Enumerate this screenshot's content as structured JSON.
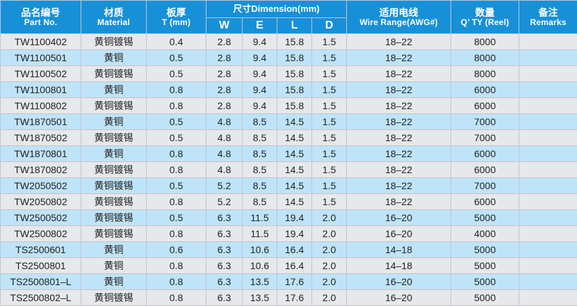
{
  "header": {
    "part_no": {
      "cn": "品名编号",
      "en": "Part No."
    },
    "material": {
      "cn": "材质",
      "en": "Material"
    },
    "thickness": {
      "cn": "板厚",
      "en": "T (mm)"
    },
    "dimension": "尺寸Dimension(mm)",
    "dims": [
      "W",
      "E",
      "L",
      "D"
    ],
    "wire_range": {
      "cn": "适用电线",
      "en": "Wire Range(AWG#)"
    },
    "qty": {
      "cn": "数量",
      "en": "Q’ TY (Reel)"
    },
    "remarks": {
      "cn": "备注",
      "en": "Remarks"
    }
  },
  "rows": [
    [
      "TW1100402",
      "黄铜镀锡",
      "0.4",
      "2.8",
      "9.4",
      "15.8",
      "1.5",
      "18–22",
      "8000",
      ""
    ],
    [
      "TW1100501",
      "黄铜",
      "0.5",
      "2.8",
      "9.4",
      "15.8",
      "1.5",
      "18–22",
      "8000",
      ""
    ],
    [
      "TW1100502",
      "黄铜镀锡",
      "0.5",
      "2.8",
      "9.4",
      "15.8",
      "1.5",
      "18–22",
      "8000",
      ""
    ],
    [
      "TW1100801",
      "黄铜",
      "0.8",
      "2.8",
      "9.4",
      "15.8",
      "1.5",
      "18–22",
      "6000",
      ""
    ],
    [
      "TW1100802",
      "黄铜镀锡",
      "0.8",
      "2.8",
      "9.4",
      "15.8",
      "1.5",
      "18–22",
      "6000",
      ""
    ],
    [
      "TW1870501",
      "黄铜",
      "0.5",
      "4.8",
      "8.5",
      "14.5",
      "1.5",
      "18–22",
      "7000",
      ""
    ],
    [
      "TW1870502",
      "黄铜镀锡",
      "0.5",
      "4.8",
      "8.5",
      "14.5",
      "1.5",
      "18–22",
      "7000",
      ""
    ],
    [
      "TW1870801",
      "黄铜",
      "0.8",
      "4.8",
      "8.5",
      "14.5",
      "1.5",
      "18–22",
      "6000",
      ""
    ],
    [
      "TW1870802",
      "黄铜镀锡",
      "0.8",
      "4.8",
      "8.5",
      "14.5",
      "1.5",
      "18–22",
      "6000",
      ""
    ],
    [
      "TW2050502",
      "黄铜镀锡",
      "0.5",
      "5.2",
      "8.5",
      "14.5",
      "1.5",
      "18–22",
      "7000",
      ""
    ],
    [
      "TW2050802",
      "黄铜镀锡",
      "0.8",
      "5.2",
      "8.5",
      "14.5",
      "1.5",
      "18–22",
      "6000",
      ""
    ],
    [
      "TW2500502",
      "黄铜镀锡",
      "0.5",
      "6.3",
      "11.5",
      "19.4",
      "2.0",
      "16–20",
      "5000",
      ""
    ],
    [
      "TW2500802",
      "黄铜镀锡",
      "0.8",
      "6.3",
      "11.5",
      "19.4",
      "2.0",
      "16–20",
      "4000",
      ""
    ],
    [
      "TS2500601",
      "黄铜",
      "0.6",
      "6.3",
      "10.6",
      "16.4",
      "2.0",
      "14–18",
      "5000",
      ""
    ],
    [
      "TS2500801",
      "黄铜",
      "0.8",
      "6.3",
      "10.6",
      "16.4",
      "2.0",
      "14–18",
      "5000",
      ""
    ],
    [
      "TS2500801–L",
      "黄铜",
      "0.8",
      "6.3",
      "13.5",
      "17.6",
      "2.0",
      "16–20",
      "5000",
      ""
    ],
    [
      "TS2500802–L",
      "黄铜镀锡",
      "0.8",
      "6.3",
      "13.5",
      "17.6",
      "2.0",
      "16–20",
      "5000",
      ""
    ]
  ]
}
